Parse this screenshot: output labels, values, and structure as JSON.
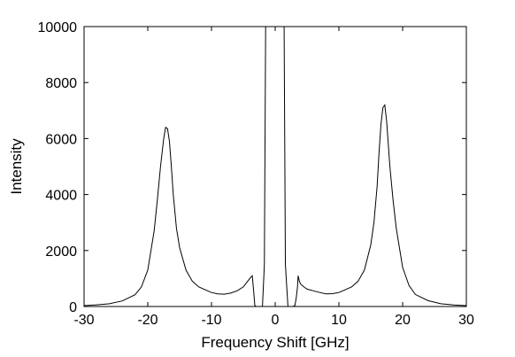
{
  "chart_data": {
    "type": "line",
    "title": "",
    "xlabel": "Frequency Shift [GHz]",
    "ylabel": "Intensity",
    "xlim": [
      -30,
      30
    ],
    "ylim": [
      0,
      10000
    ],
    "xticks": [
      -30,
      -20,
      -10,
      0,
      10,
      20,
      30
    ],
    "yticks": [
      0,
      2000,
      4000,
      6000,
      8000,
      10000
    ],
    "xtick_labels": [
      "-30",
      "-20",
      "-10",
      "0",
      "10",
      "20",
      "30"
    ],
    "ytick_labels": [
      "0",
      "2000",
      "4000",
      "6000",
      "8000",
      "10000"
    ],
    "grid": false,
    "line_color": "#000000",
    "series": [
      {
        "x": [
          -30,
          -28,
          -26,
          -24,
          -22,
          -21,
          -20,
          -19,
          -18.5,
          -18,
          -17.5,
          -17.2,
          -16.9,
          -16.6,
          -16.3,
          -16,
          -15.5,
          -15,
          -14,
          -13,
          -12,
          -11,
          -10,
          -9,
          -8,
          -7,
          -6,
          -5,
          -4.5,
          -4,
          -3.6,
          -3.4,
          -3.2,
          -3.0,
          -2.8,
          -2.4,
          -2.0,
          -1.7,
          -1.5,
          -1.3,
          -1.2,
          1.1,
          1.2,
          1.4,
          1.6,
          2.0,
          2.4,
          2.8,
          3.1,
          3.3,
          3.5,
          3.6,
          3.8,
          4,
          4.5,
          5,
          6,
          7,
          8,
          9,
          10,
          11,
          12,
          13,
          14,
          15,
          15.5,
          16,
          16.3,
          16.6,
          16.9,
          17.2,
          17.5,
          18,
          18.5,
          19,
          20,
          21,
          22,
          24,
          26,
          28,
          30
        ],
        "y": [
          30,
          60,
          100,
          200,
          420,
          700,
          1300,
          2700,
          3800,
          5000,
          6000,
          6400,
          6350,
          5900,
          5000,
          4000,
          2800,
          2100,
          1300,
          900,
          700,
          600,
          500,
          450,
          440,
          480,
          560,
          700,
          850,
          1000,
          1100,
          600,
          40,
          0,
          0,
          0,
          0,
          1500,
          10000,
          10000,
          10000,
          10000,
          10000,
          10000,
          1500,
          0,
          0,
          0,
          40,
          300,
          700,
          1100,
          900,
          800,
          700,
          620,
          560,
          500,
          450,
          460,
          500,
          600,
          700,
          900,
          1300,
          2200,
          3000,
          4300,
          5500,
          6500,
          7100,
          7200,
          6600,
          5000,
          3800,
          2800,
          1400,
          750,
          430,
          210,
          100,
          55,
          30
        ]
      }
    ]
  }
}
